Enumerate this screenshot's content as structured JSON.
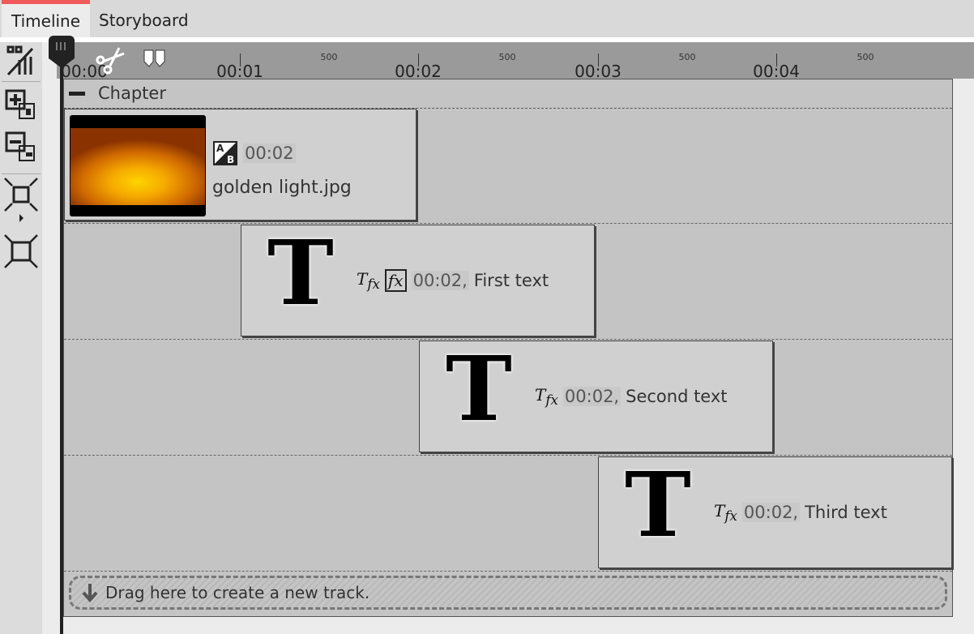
{
  "tabs": [
    {
      "label": "Timeline",
      "active": true
    },
    {
      "label": "Storyboard",
      "active": false
    }
  ],
  "accent_color": "#f05a5a",
  "toolbar": {
    "icons": [
      "transition-toggle-icon",
      "add-track-icon",
      "remove-track-icon",
      "zoom-in-fit-icon",
      "zoom-out-fit-icon"
    ]
  },
  "ruler": {
    "labels": [
      "00:00",
      "00:01",
      "00:02",
      "00:03",
      "00:04"
    ],
    "half_labels": [
      "500",
      "500",
      "500",
      "500"
    ]
  },
  "chapter": {
    "label": "Chapter"
  },
  "clips": [
    {
      "type": "image",
      "duration": "00:02",
      "name": "golden light.jpg"
    },
    {
      "type": "text",
      "duration": "00:02,",
      "name": "First text"
    },
    {
      "type": "text",
      "duration": "00:02,",
      "name": "Second text"
    },
    {
      "type": "text",
      "duration": "00:02,",
      "name": "Third text"
    }
  ],
  "text_glyph": "T",
  "drop_zone": {
    "label": "Drag here to create a new track."
  }
}
